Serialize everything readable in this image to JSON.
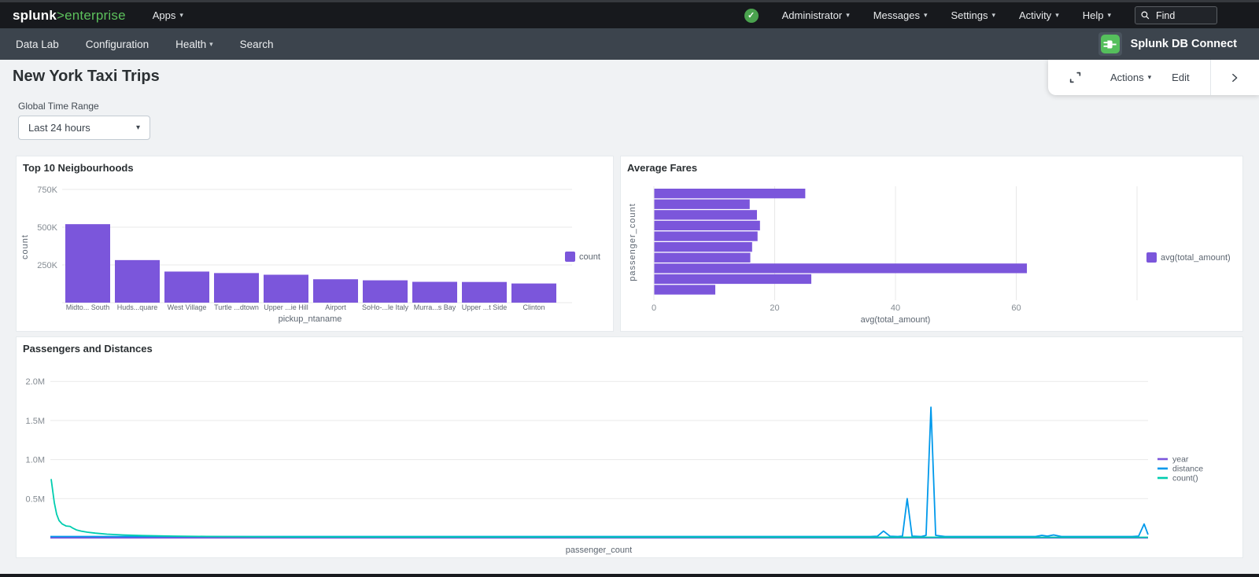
{
  "topnav": {
    "logo_bold": "splunk",
    "logo_accent": ">enterprise",
    "apps_label": "Apps",
    "menus": [
      "Administrator",
      "Messages",
      "Settings",
      "Activity",
      "Help"
    ],
    "find_placeholder": "Find"
  },
  "appbar": {
    "tabs": [
      "Data Lab",
      "Configuration",
      "Health",
      "Search"
    ],
    "app_name": "Splunk DB Connect"
  },
  "action_bar": {
    "actions_label": "Actions",
    "edit_label": "Edit"
  },
  "page": {
    "title": "New York Taxi Trips",
    "time_range_label": "Global Time Range",
    "time_range_value": "Last 24 hours"
  },
  "colors": {
    "accent_green": "#5cc05c",
    "series_purple": "#7b56db",
    "series_blue": "#0099eb",
    "series_teal": "#00cdaf",
    "topnav_bg": "#17191d",
    "appbar_bg": "#3c444d",
    "page_bg": "#f0f2f4"
  },
  "chart_data": [
    {
      "type": "bar",
      "title": "Top 10 Neigbourhoods",
      "categories": [
        "Midto... South",
        "Huds...quare",
        "West Village",
        "Turtle ...dtown",
        "Upper ...ie Hill",
        "Airport",
        "SoHo-...le Italy",
        "Murra...s Bay",
        "Upper ...t Side",
        "Clinton"
      ],
      "values": [
        520000,
        282000,
        206000,
        196000,
        185000,
        155000,
        148000,
        138000,
        137000,
        127000
      ],
      "xlabel": "pickup_ntaname",
      "ylabel": "count",
      "ylim": [
        0,
        830000
      ],
      "yticks": [
        {
          "v": 250000,
          "label": "250K"
        },
        {
          "v": 500000,
          "label": "500K"
        },
        {
          "v": 750000,
          "label": "750K"
        }
      ],
      "grid": true,
      "legend_position": "right",
      "legend": [
        {
          "label": "count",
          "color": "#7b56db"
        }
      ],
      "bar_color": "#7b56db"
    },
    {
      "type": "bar_horizontal",
      "title": "Average Fares",
      "values": [
        25,
        15.8,
        17,
        17.5,
        17.1,
        16.2,
        15.9,
        61.7,
        26,
        10.1
      ],
      "xlabel": "avg(total_amount)",
      "ylabel": "passenger_count",
      "xlim": [
        0,
        80
      ],
      "xticks": [
        {
          "v": 0,
          "label": "0"
        },
        {
          "v": 20,
          "label": "20"
        },
        {
          "v": 40,
          "label": "40"
        },
        {
          "v": 60,
          "label": "60"
        },
        {
          "v": 80,
          "label": ""
        }
      ],
      "grid": true,
      "legend_position": "right",
      "legend": [
        {
          "label": "avg(total_amount)",
          "color": "#7b56db"
        }
      ],
      "bar_color": "#7b56db"
    },
    {
      "type": "line",
      "title": "Passengers and Distances",
      "xlabel": "passenger_count",
      "ylabel": "",
      "ylim_millions": [
        0,
        2.3
      ],
      "yticks": [
        {
          "v": 0.5,
          "label": "0.5M"
        },
        {
          "v": 1.0,
          "label": "1.0M"
        },
        {
          "v": 1.5,
          "label": "1.5M"
        },
        {
          "v": 2.0,
          "label": "2.0M"
        }
      ],
      "grid": true,
      "legend_position": "right",
      "series": [
        {
          "name": "year",
          "color": "#7b56db",
          "points": [
            [
              0,
              0.0
            ],
            [
              1,
              0.0
            ]
          ]
        },
        {
          "name": "distance",
          "color": "#0099eb",
          "points": [
            [
              0,
              0.015
            ],
            [
              0.747,
              0.015
            ],
            [
              0.7534,
              0.018
            ],
            [
              0.759,
              0.085
            ],
            [
              0.765,
              0.018
            ],
            [
              0.772,
              0.015
            ],
            [
              0.7763,
              0.02
            ],
            [
              0.7806,
              0.5
            ],
            [
              0.785,
              0.02
            ],
            [
              0.7935,
              0.015
            ],
            [
              0.7978,
              0.03
            ],
            [
              0.8022,
              1.67
            ],
            [
              0.8065,
              0.03
            ],
            [
              0.815,
              0.015
            ],
            [
              0.8975,
              0.015
            ],
            [
              0.9032,
              0.03
            ],
            [
              0.9083,
              0.02
            ],
            [
              0.914,
              0.035
            ],
            [
              0.9211,
              0.015
            ],
            [
              0.9856,
              0.015
            ],
            [
              0.9914,
              0.02
            ],
            [
              0.9964,
              0.175
            ],
            [
              1,
              0.04
            ]
          ]
        },
        {
          "name": "count()",
          "color": "#00cdaf",
          "points": [
            [
              0.0007,
              0.75
            ],
            [
              0.00215,
              0.6
            ],
            [
              0.0036,
              0.45
            ],
            [
              0.0057,
              0.3
            ],
            [
              0.0079,
              0.22
            ],
            [
              0.0108,
              0.175
            ],
            [
              0.0143,
              0.15
            ],
            [
              0.0179,
              0.145
            ],
            [
              0.0208,
              0.12
            ],
            [
              0.0237,
              0.1
            ],
            [
              0.028,
              0.085
            ],
            [
              0.0337,
              0.07
            ],
            [
              0.0409,
              0.058
            ],
            [
              0.0516,
              0.045
            ],
            [
              0.0659,
              0.035
            ],
            [
              0.0839,
              0.027
            ],
            [
              0.1125,
              0.02
            ],
            [
              0.1556,
              0.014
            ],
            [
              0.22,
              0.009
            ],
            [
              0.3276,
              0.008
            ],
            [
              0.5427,
              0.006
            ],
            [
              1,
              0.005
            ]
          ]
        }
      ]
    }
  ]
}
